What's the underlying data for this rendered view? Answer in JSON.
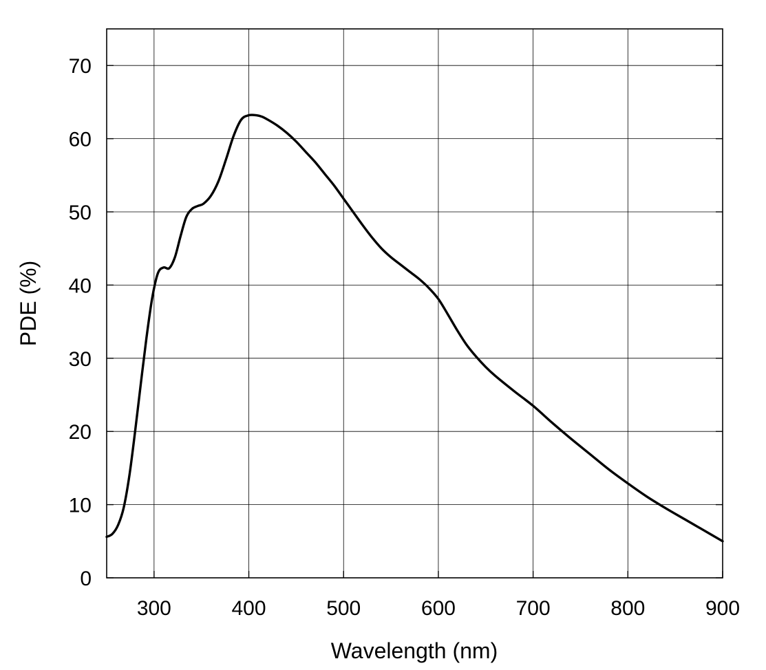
{
  "chart_data": {
    "type": "line",
    "title": "",
    "xlabel": "Wavelength (nm)",
    "ylabel": "PDE (%)",
    "xlim": [
      250,
      900
    ],
    "ylim": [
      0,
      75
    ],
    "xticks": [
      300,
      400,
      500,
      600,
      700,
      800,
      900
    ],
    "yticks": [
      0,
      10,
      20,
      30,
      40,
      50,
      60,
      70
    ],
    "grid": true,
    "series": [
      {
        "name": "PDE",
        "color": "#000000",
        "x": [
          250,
          256,
          262,
          268,
          274,
          280,
          286,
          292,
          298,
          304,
          310,
          316,
          322,
          328,
          334,
          340,
          346,
          352,
          360,
          368,
          376,
          384,
          392,
          400,
          408,
          414,
          420,
          430,
          440,
          450,
          460,
          470,
          480,
          490,
          500,
          510,
          520,
          530,
          540,
          550,
          560,
          570,
          580,
          590,
          600,
          610,
          620,
          630,
          640,
          650,
          660,
          680,
          700,
          720,
          740,
          760,
          780,
          800,
          820,
          840,
          860,
          880,
          900
        ],
        "values": [
          5.6,
          6.0,
          7.2,
          9.6,
          14.0,
          20.0,
          26.5,
          32.8,
          38.2,
          41.6,
          42.4,
          42.3,
          43.8,
          46.7,
          49.3,
          50.4,
          50.8,
          51.1,
          52.2,
          54.2,
          57.2,
          60.4,
          62.6,
          63.2,
          63.2,
          63.0,
          62.6,
          61.8,
          60.8,
          59.6,
          58.2,
          56.8,
          55.2,
          53.6,
          51.8,
          50.0,
          48.2,
          46.5,
          45.0,
          43.8,
          42.8,
          41.8,
          40.8,
          39.6,
          38.1,
          36.0,
          33.8,
          31.8,
          30.2,
          28.8,
          27.6,
          25.5,
          23.5,
          21.2,
          19.0,
          16.9,
          14.8,
          12.9,
          11.1,
          9.5,
          8.0,
          6.5,
          5.0
        ]
      }
    ]
  }
}
